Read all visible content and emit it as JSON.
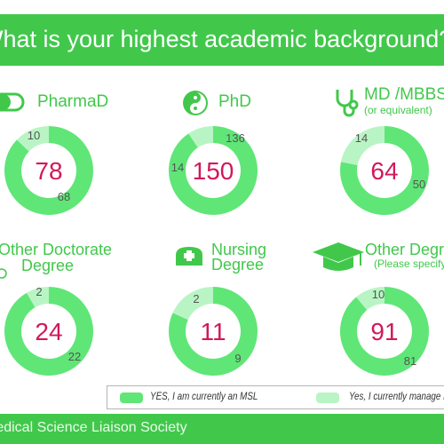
{
  "banner": {
    "question": "What is your highest academic background?"
  },
  "footer": {
    "org": "Medical Science Liaison Society"
  },
  "colors": {
    "green": "#41c84b",
    "ring_yes": "#5fe677",
    "ring_manage": "#b9f5c4",
    "total_text": "#d2185a",
    "label_text": "#555555"
  },
  "legend": {
    "yes_msl": "YES, I am  currently an MSL",
    "yes_manage": "Yes, I currently manage MSLs"
  },
  "chart_data": [
    {
      "type": "pie",
      "title": "PharmaD",
      "subtitle": "",
      "icon": "pill-icon",
      "total": 78,
      "series": [
        {
          "name": "YES, I am  currently an MSL",
          "value": 68
        },
        {
          "name": "Yes, I currently manage MSLs",
          "value": 10
        }
      ]
    },
    {
      "type": "pie",
      "title": "PhD",
      "subtitle": "",
      "icon": "yin-yang-icon",
      "total": 150,
      "series": [
        {
          "name": "YES, I am  currently an MSL",
          "value": 136
        },
        {
          "name": "Yes, I currently manage MSLs",
          "value": 14
        }
      ]
    },
    {
      "type": "pie",
      "title": "MD /MBBS",
      "subtitle": "(or equivalent)",
      "icon": "stethoscope-icon",
      "total": 64,
      "series": [
        {
          "name": "YES, I am  currently an MSL",
          "value": 50
        },
        {
          "name": "Yes, I currently manage MSLs",
          "value": 14
        }
      ]
    },
    {
      "type": "pie",
      "title": "Other Doctorate",
      "subtitle": "Degree",
      "icon": "",
      "total": 24,
      "series": [
        {
          "name": "YES, I am  currently an MSL",
          "value": 22
        },
        {
          "name": "Yes, I currently manage MSLs",
          "value": 2
        }
      ]
    },
    {
      "type": "pie",
      "title": "Nursing",
      "subtitle": "Degree",
      "icon": "nurse-cap-icon",
      "total": 11,
      "series": [
        {
          "name": "YES, I am  currently an MSL",
          "value": 9
        },
        {
          "name": "Yes, I currently manage MSLs",
          "value": 2
        }
      ]
    },
    {
      "type": "pie",
      "title": "Other Degree",
      "subtitle": "(Please specify)",
      "icon": "graduation-cap-icon",
      "total": 91,
      "series": [
        {
          "name": "YES, I am  currently an MSL",
          "value": 81
        },
        {
          "name": "Yes, I currently manage MSLs",
          "value": 10
        }
      ]
    }
  ]
}
